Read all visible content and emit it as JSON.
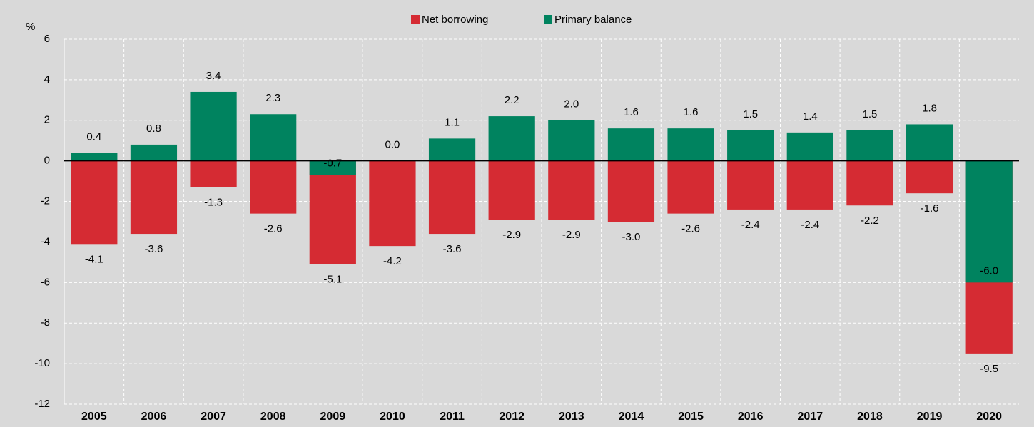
{
  "chart_data": {
    "type": "bar",
    "y_unit": "%",
    "categories": [
      "2005",
      "2006",
      "2007",
      "2008",
      "2009",
      "2010",
      "2011",
      "2012",
      "2013",
      "2014",
      "2015",
      "2016",
      "2017",
      "2018",
      "2019",
      "2020"
    ],
    "series": [
      {
        "name": "Net borrowing",
        "color": "#d52b33",
        "values": [
          -4.1,
          -3.6,
          -1.3,
          -2.6,
          -5.1,
          -4.2,
          -3.6,
          -2.9,
          -2.9,
          -3.0,
          -2.6,
          -2.4,
          -2.4,
          -2.2,
          -1.6,
          -9.5
        ],
        "value_labels": [
          "-4.1",
          "-3.6",
          "-1.3",
          "-2.6",
          "-5.1",
          "-4.2",
          "-3.6",
          "-2.9",
          "-2.9",
          "-3.0",
          "-2.6",
          "-2.4",
          "-2.4",
          "-2.2",
          "-1.6",
          "-9.5"
        ]
      },
      {
        "name": "Primary balance",
        "color": "#00835f",
        "values": [
          0.4,
          0.8,
          3.4,
          2.3,
          -0.7,
          0.0,
          1.1,
          2.2,
          2.0,
          1.6,
          1.6,
          1.5,
          1.4,
          1.5,
          1.8,
          -6.0
        ],
        "value_labels": [
          "0.4",
          "0.8",
          "3.4",
          "2.3",
          "-0.7",
          "0.0",
          "1.1",
          "2.2",
          "2.0",
          "1.6",
          "1.6",
          "1.5",
          "1.4",
          "1.5",
          "1.8",
          "-6.0"
        ]
      }
    ],
    "ylim": [
      -12,
      6
    ],
    "yticks": [
      -12,
      -10,
      -8,
      -6,
      -4,
      -2,
      0,
      2,
      4,
      6
    ],
    "grid": true,
    "legend": "top"
  }
}
